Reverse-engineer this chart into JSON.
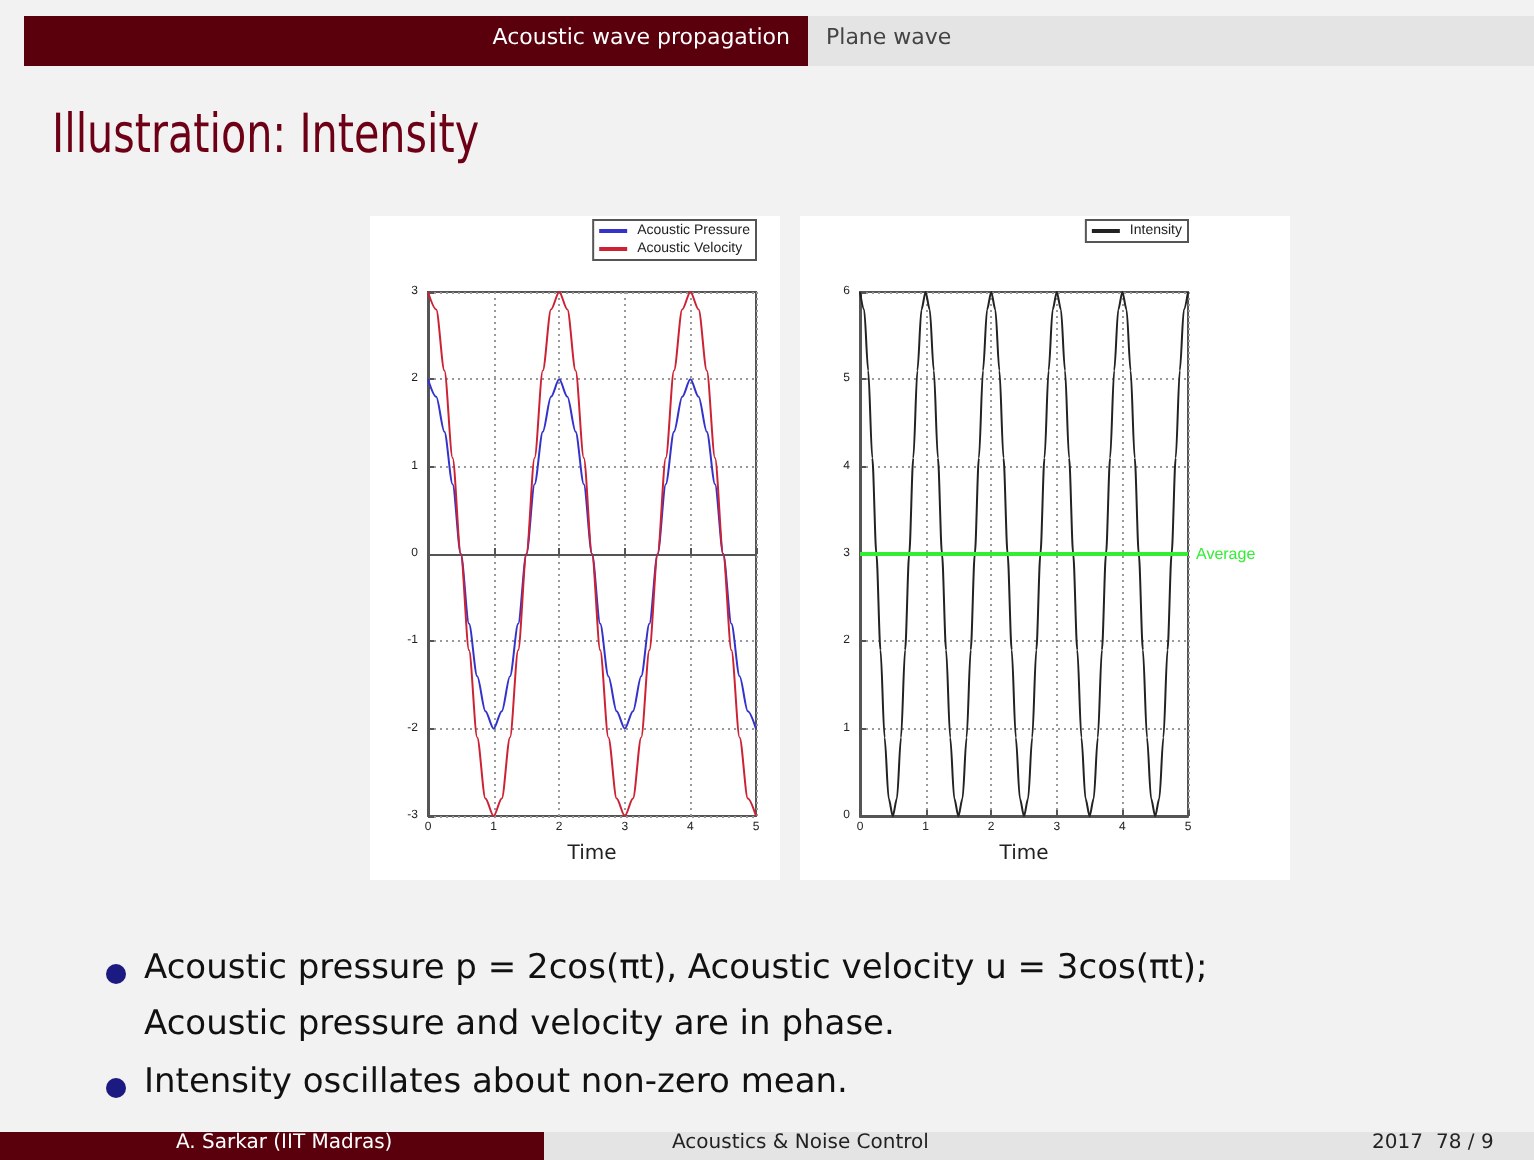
{
  "chart_data": [
    {
      "type": "line",
      "xlabel": "Time",
      "legend": "top right",
      "grid": true,
      "xlim": [
        0,
        5
      ],
      "xticks": [
        0,
        1,
        2,
        3,
        4,
        5
      ],
      "ylim": [
        -3,
        3
      ],
      "yticks": [
        -3,
        -2,
        -1,
        0,
        1,
        2,
        3
      ],
      "x": [
        0,
        0.125,
        0.25,
        0.375,
        0.5,
        0.625,
        0.75,
        0.875,
        1,
        1.125,
        1.25,
        1.375,
        1.5,
        1.625,
        1.75,
        1.875,
        2,
        2.125,
        2.25,
        2.375,
        2.5,
        2.625,
        2.75,
        2.875,
        3,
        3.125,
        3.25,
        3.375,
        3.5,
        3.625,
        3.75,
        3.875,
        4,
        4.125,
        4.25,
        4.375,
        4.5,
        4.625,
        4.75,
        4.875,
        5
      ],
      "series": [
        {
          "name": "Acoustic Pressure",
          "color": "#3333cc",
          "values": [
            2,
            1.8,
            1.4,
            0.8,
            0,
            -0.8,
            -1.4,
            -1.8,
            -2,
            -1.8,
            -1.4,
            -0.8,
            0,
            0.8,
            1.4,
            1.8,
            2,
            1.8,
            1.4,
            0.8,
            0,
            -0.8,
            -1.4,
            -1.8,
            -2,
            -1.8,
            -1.4,
            -0.8,
            0,
            0.8,
            1.4,
            1.8,
            2,
            1.8,
            1.4,
            0.8,
            0,
            -0.8,
            -1.4,
            -1.8,
            -2
          ]
        },
        {
          "name": "Acoustic Velocity",
          "color": "#cc2233",
          "values": [
            3,
            2.8,
            2.1,
            1.1,
            0,
            -1.1,
            -2.1,
            -2.8,
            -3,
            -2.8,
            -2.1,
            -1.1,
            0,
            1.1,
            2.1,
            2.8,
            3,
            2.8,
            2.1,
            1.1,
            0,
            -1.1,
            -2.1,
            -2.8,
            -3,
            -2.8,
            -2.1,
            -1.1,
            0,
            1.1,
            2.1,
            2.8,
            3,
            2.8,
            2.1,
            1.1,
            0,
            -1.1,
            -2.1,
            -2.8,
            -3
          ]
        }
      ]
    },
    {
      "type": "line",
      "xlabel": "Time",
      "legend": "top right",
      "grid": true,
      "xlim": [
        0,
        5
      ],
      "xticks": [
        0,
        1,
        2,
        3,
        4,
        5
      ],
      "ylim": [
        0,
        6
      ],
      "yticks": [
        0,
        1,
        2,
        3,
        4,
        5,
        6
      ],
      "x": [
        0,
        0.0625,
        0.125,
        0.1875,
        0.25,
        0.3125,
        0.375,
        0.4375,
        0.5,
        0.5625,
        0.625,
        0.6875,
        0.75,
        0.8125,
        0.875,
        0.9375,
        1,
        1.0625,
        1.125,
        1.1875,
        1.25,
        1.3125,
        1.375,
        1.4375,
        1.5,
        1.5625,
        1.625,
        1.6875,
        1.75,
        1.8125,
        1.875,
        1.9375,
        2,
        2.0625,
        2.125,
        2.1875,
        2.25,
        2.3125,
        2.375,
        2.4375,
        2.5,
        2.5625,
        2.625,
        2.6875,
        2.75,
        2.8125,
        2.875,
        2.9375,
        3,
        3.0625,
        3.125,
        3.1875,
        3.25,
        3.3125,
        3.375,
        3.4375,
        3.5,
        3.5625,
        3.625,
        3.6875,
        3.75,
        3.8125,
        3.875,
        3.9375,
        4,
        4.0625,
        4.125,
        4.1875,
        4.25,
        4.3125,
        4.375,
        4.4375,
        4.5,
        4.5625,
        4.625,
        4.6875,
        4.75,
        4.8125,
        4.875,
        4.9375,
        5
      ],
      "series": [
        {
          "name": "Intensity",
          "color": "#222222",
          "values": [
            6,
            5.8,
            5.1,
            4.1,
            3,
            1.9,
            0.9,
            0.2,
            0,
            0.2,
            0.9,
            1.9,
            3,
            4.1,
            5.1,
            5.8,
            6,
            5.8,
            5.1,
            4.1,
            3,
            1.9,
            0.9,
            0.2,
            0,
            0.2,
            0.9,
            1.9,
            3,
            4.1,
            5.1,
            5.8,
            6,
            5.8,
            5.1,
            4.1,
            3,
            1.9,
            0.9,
            0.2,
            0,
            0.2,
            0.9,
            1.9,
            3,
            4.1,
            5.1,
            5.8,
            6,
            5.8,
            5.1,
            4.1,
            3,
            1.9,
            0.9,
            0.2,
            0,
            0.2,
            0.9,
            1.9,
            3,
            4.1,
            5.1,
            5.8,
            6,
            5.8,
            5.1,
            4.1,
            3,
            1.9,
            0.9,
            0.2,
            0,
            0.2,
            0.9,
            1.9,
            3,
            4.1,
            5.1,
            5.8,
            6
          ]
        }
      ],
      "ref_lines": [
        {
          "axis": "y",
          "value": 3,
          "label": "Average",
          "color": "#33ee33"
        }
      ]
    },
    {
      "type": "other",
      "title": "Illustration: Intensity",
      "annotations": [
        "Acoustic wave propagation",
        "Plane wave",
        "Acoustic pressure p = 2cos(πt), Acoustic velocity u = 3cos(πt);",
        "Acoustic pressure and velocity are in phase.",
        "Intensity oscillates about non-zero mean.",
        "A. Sarkar  (IIT Madras)",
        "Acoustics & Noise Control",
        "2017",
        "78 / 9"
      ]
    }
  ]
}
